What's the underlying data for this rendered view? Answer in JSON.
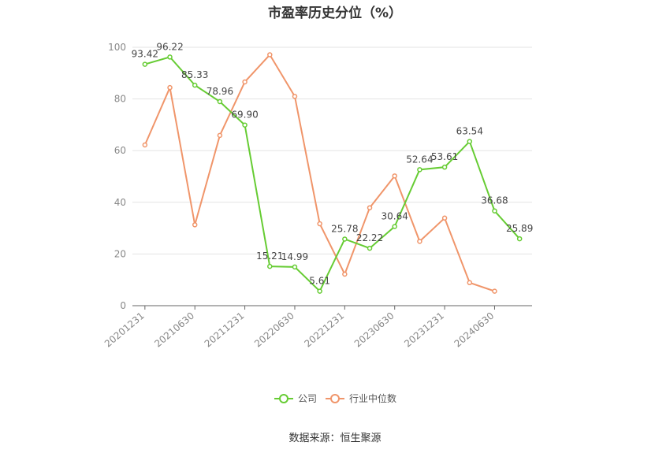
{
  "chart_data": {
    "type": "line",
    "title": "市盈率历史分位（%）",
    "ylim": [
      0,
      100
    ],
    "y_ticks": [
      0,
      20,
      40,
      60,
      80,
      100
    ],
    "grid": true,
    "legend_position": "bottom",
    "x": [
      "20201231",
      "20210331",
      "20210630",
      "20210930",
      "20211231",
      "20220331",
      "20220630",
      "20220930",
      "20221231",
      "20230331",
      "20230630",
      "20230930",
      "20231231",
      "20240331",
      "20240630",
      "20240930"
    ],
    "x_tick_labels": [
      "20201231",
      "20210630",
      "20211231",
      "20220630",
      "20221231",
      "20230630",
      "20231231",
      "20240630"
    ],
    "series": [
      {
        "name": "公司",
        "color": "#66cc33",
        "values": [
          93.42,
          96.22,
          85.33,
          78.96,
          69.9,
          15.21,
          14.99,
          5.61,
          25.78,
          22.22,
          30.64,
          52.64,
          53.61,
          63.54,
          36.68,
          25.89
        ],
        "labels": [
          "93.42",
          "96.22",
          "85.33",
          "78.96",
          "69.90",
          "15.21",
          "14.99",
          "5.61",
          "25.78",
          "22.22",
          "30.64",
          "52.64",
          "53.61",
          "63.54",
          "36.68",
          "25.89"
        ]
      },
      {
        "name": "行业中位数",
        "color": "#f0956a",
        "values": [
          62.2,
          84.4,
          31.3,
          65.9,
          86.6,
          97.1,
          81.0,
          31.7,
          12.2,
          37.9,
          50.2,
          24.9,
          33.9,
          8.9,
          5.6,
          null
        ]
      }
    ]
  },
  "footer": {
    "source": "数据来源：恒生聚源"
  }
}
